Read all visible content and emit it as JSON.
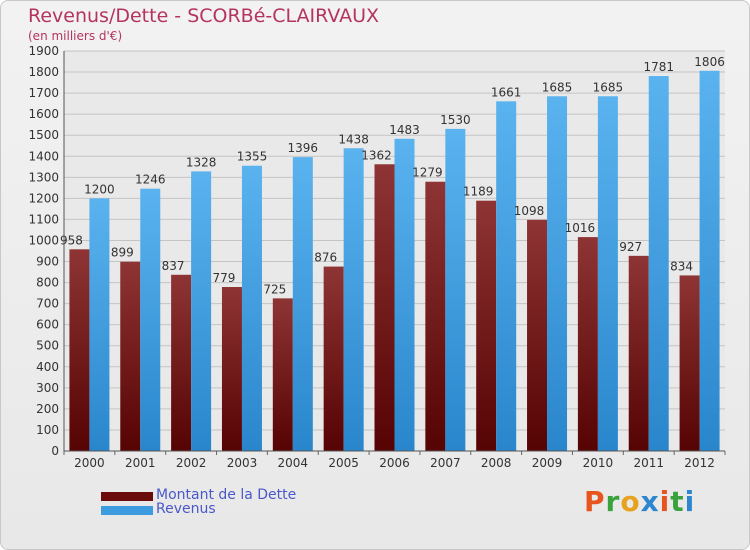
{
  "header": {
    "title": "Revenus/Dette - SCORBé-CLAIRVAUX",
    "subtitle": "(en milliers d'€)"
  },
  "chart_data": {
    "type": "bar",
    "categories": [
      "2000",
      "2001",
      "2002",
      "2003",
      "2004",
      "2005",
      "2006",
      "2007",
      "2008",
      "2009",
      "2010",
      "2011",
      "2012"
    ],
    "series": [
      {
        "name": "Montant de la Dette",
        "color": "#6b0b0b",
        "values": [
          958,
          899,
          837,
          779,
          725,
          876,
          1362,
          1279,
          1189,
          1098,
          1016,
          927,
          834
        ]
      },
      {
        "name": "Revenus",
        "color": "#3d9ce0",
        "values": [
          1200,
          1246,
          1328,
          1355,
          1396,
          1438,
          1483,
          1530,
          1661,
          1685,
          1685,
          1781,
          1806
        ]
      }
    ],
    "ylim": [
      0,
      1900
    ],
    "yticks": [
      0,
      100,
      200,
      300,
      400,
      500,
      600,
      700,
      800,
      900,
      1000,
      1100,
      1200,
      1300,
      1400,
      1500,
      1600,
      1700,
      1800,
      1900
    ],
    "grid": true,
    "legend_position": "bottom-left"
  },
  "logo": {
    "letters": [
      "P",
      "r",
      "o",
      "x",
      "i",
      "t",
      "i"
    ],
    "colors": [
      "#e8541e",
      "#3aa23c",
      "#e8a21e",
      "#2f86d0",
      "#e8541e",
      "#3aa23c",
      "#2f86d0"
    ]
  }
}
